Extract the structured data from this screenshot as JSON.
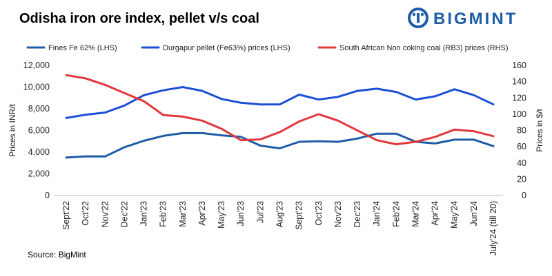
{
  "header": {
    "title": "Odisha iron ore index, pellet v/s coal",
    "logo_text": "BIGMINT"
  },
  "source": "Source: BigMint",
  "colors": {
    "dark_blue": "#1f5ca8",
    "blue": "#1a4fd6",
    "red": "#e0383b",
    "logo": "#1f5ca8"
  },
  "chart_data": {
    "type": "line",
    "legend_position": "top",
    "grid": false,
    "categories": [
      "Sept'22",
      "Oct'22",
      "Nov'22",
      "Dec'22",
      "Jan'23",
      "Feb'23",
      "Mar'23",
      "Apr'23",
      "May'23",
      "Jun'23",
      "Jul'23",
      "Aug'23",
      "Sept'23",
      "Oct'23",
      "Nov'23",
      "Dec'23",
      "Jan'24",
      "Feb'24",
      "Mar'24",
      "Apr'24",
      "May'24",
      "Jun'24",
      "July'24 (till 20)"
    ],
    "ylabel_left": "Prices in INR/t",
    "ylabel_right": "Prices in $/t",
    "ylim_left": [
      0,
      12000
    ],
    "ylim_right": [
      0,
      160
    ],
    "yticks_left": [
      "0",
      "2,000",
      "4,000",
      "6,000",
      "8,000",
      "10,000",
      "12,000"
    ],
    "yticks_right": [
      "0",
      "20",
      "40",
      "60",
      "80",
      "100",
      "120",
      "140",
      "160"
    ],
    "series": [
      {
        "name": "Fines Fe 62% (LHS)",
        "axis": "left",
        "color": "#1f5ca8",
        "values": [
          3500,
          3600,
          3600,
          4450,
          5050,
          5500,
          5750,
          5750,
          5550,
          5400,
          4600,
          4350,
          4950,
          5000,
          4950,
          5250,
          5700,
          5700,
          4950,
          4800,
          5150,
          5150,
          4550
        ]
      },
      {
        "name": "Durgapur pellet (Fe63%) prices (LHS)",
        "axis": "left",
        "color": "#1a4fd6",
        "values": [
          7150,
          7450,
          7650,
          8300,
          9250,
          9700,
          10000,
          9650,
          8900,
          8550,
          8400,
          8400,
          9300,
          8850,
          9100,
          9650,
          9850,
          9550,
          8850,
          9150,
          9800,
          9250,
          8400
        ]
      },
      {
        "name": "South African Non coking coal (RB3) prices (RHS)",
        "axis": "right",
        "color": "#e0383b",
        "values": [
          148,
          144,
          136,
          126,
          116,
          99,
          97,
          92,
          82,
          68,
          69,
          78,
          91,
          100,
          92,
          80,
          68,
          63,
          66,
          72,
          81,
          79,
          73
        ]
      }
    ]
  }
}
